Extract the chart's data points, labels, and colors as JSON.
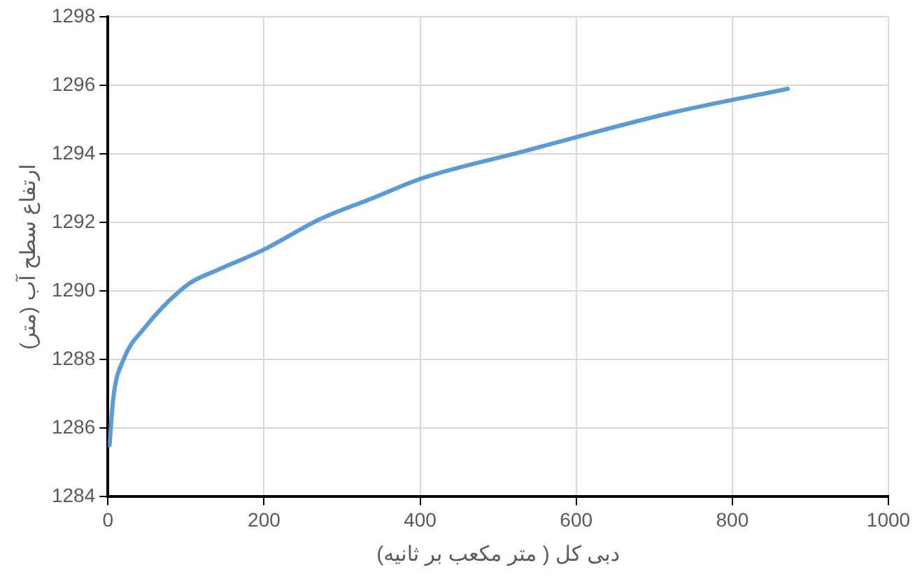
{
  "chart_data": {
    "type": "line",
    "xlabel": "دبی کل ( متر مکعب بر ثانیه)",
    "ylabel": "ارتفاع سطح آب (متر)",
    "x": [
      2,
      7,
      20,
      46,
      103,
      139,
      199,
      272,
      338,
      404,
      537,
      602,
      722,
      871
    ],
    "series": [
      {
        "color": "#5b9bd5",
        "values": [
          1285.5,
          1286.9,
          1288.0,
          1288.9,
          1290.2,
          1290.6,
          1291.2,
          1292.1,
          1292.7,
          1293.3,
          1294.1,
          1294.5,
          1295.2,
          1295.9
        ]
      }
    ],
    "xlim": [
      0,
      1000
    ],
    "xticks": [
      0,
      200,
      400,
      600,
      800,
      1000
    ],
    "ylim": [
      1284,
      1298
    ],
    "yticks": [
      1284,
      1286,
      1288,
      1290,
      1292,
      1294,
      1296,
      1298
    ],
    "grid": true,
    "legend": false,
    "marker": "none",
    "line_style": "solid"
  }
}
